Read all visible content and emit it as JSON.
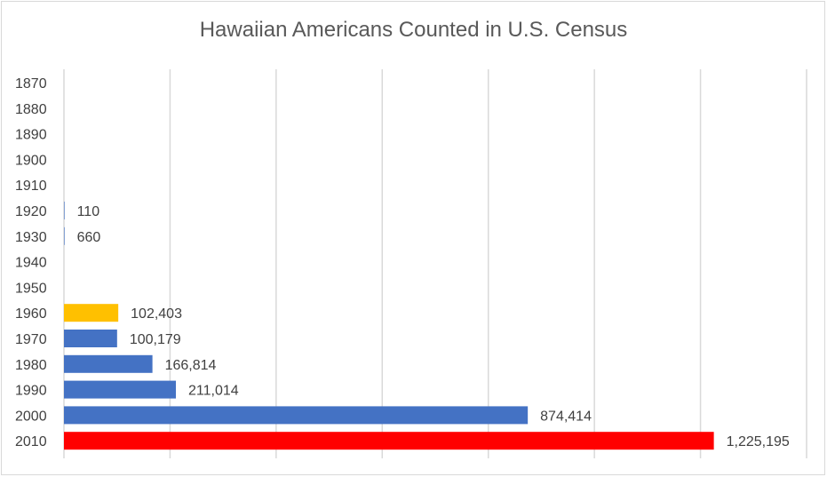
{
  "chart_data": {
    "type": "bar",
    "orientation": "horizontal",
    "title": "Hawaiian Americans Counted in U.S. Census",
    "xlabel": "",
    "ylabel": "",
    "xlim": [
      0,
      1400000
    ],
    "grid": true,
    "legend": "none",
    "categories": [
      "1870",
      "1880",
      "1890",
      "1900",
      "1910",
      "1920",
      "1930",
      "1940",
      "1950",
      "1960",
      "1970",
      "1980",
      "1990",
      "2000",
      "2010"
    ],
    "values": [
      null,
      null,
      null,
      null,
      null,
      110,
      660,
      null,
      null,
      102403,
      100179,
      166814,
      211014,
      874414,
      1225195
    ],
    "data_labels": [
      "",
      "",
      "",
      "",
      "",
      "110",
      "660",
      "",
      "",
      "102,403",
      "100,179",
      "166,814",
      "211,014",
      "874,414",
      "1,225,195"
    ],
    "colors": [
      "#4472c4",
      "#4472c4",
      "#4472c4",
      "#4472c4",
      "#4472c4",
      "#4472c4",
      "#4472c4",
      "#4472c4",
      "#4472c4",
      "#ffc000",
      "#4472c4",
      "#4472c4",
      "#4472c4",
      "#4472c4",
      "#ff0000"
    ]
  }
}
